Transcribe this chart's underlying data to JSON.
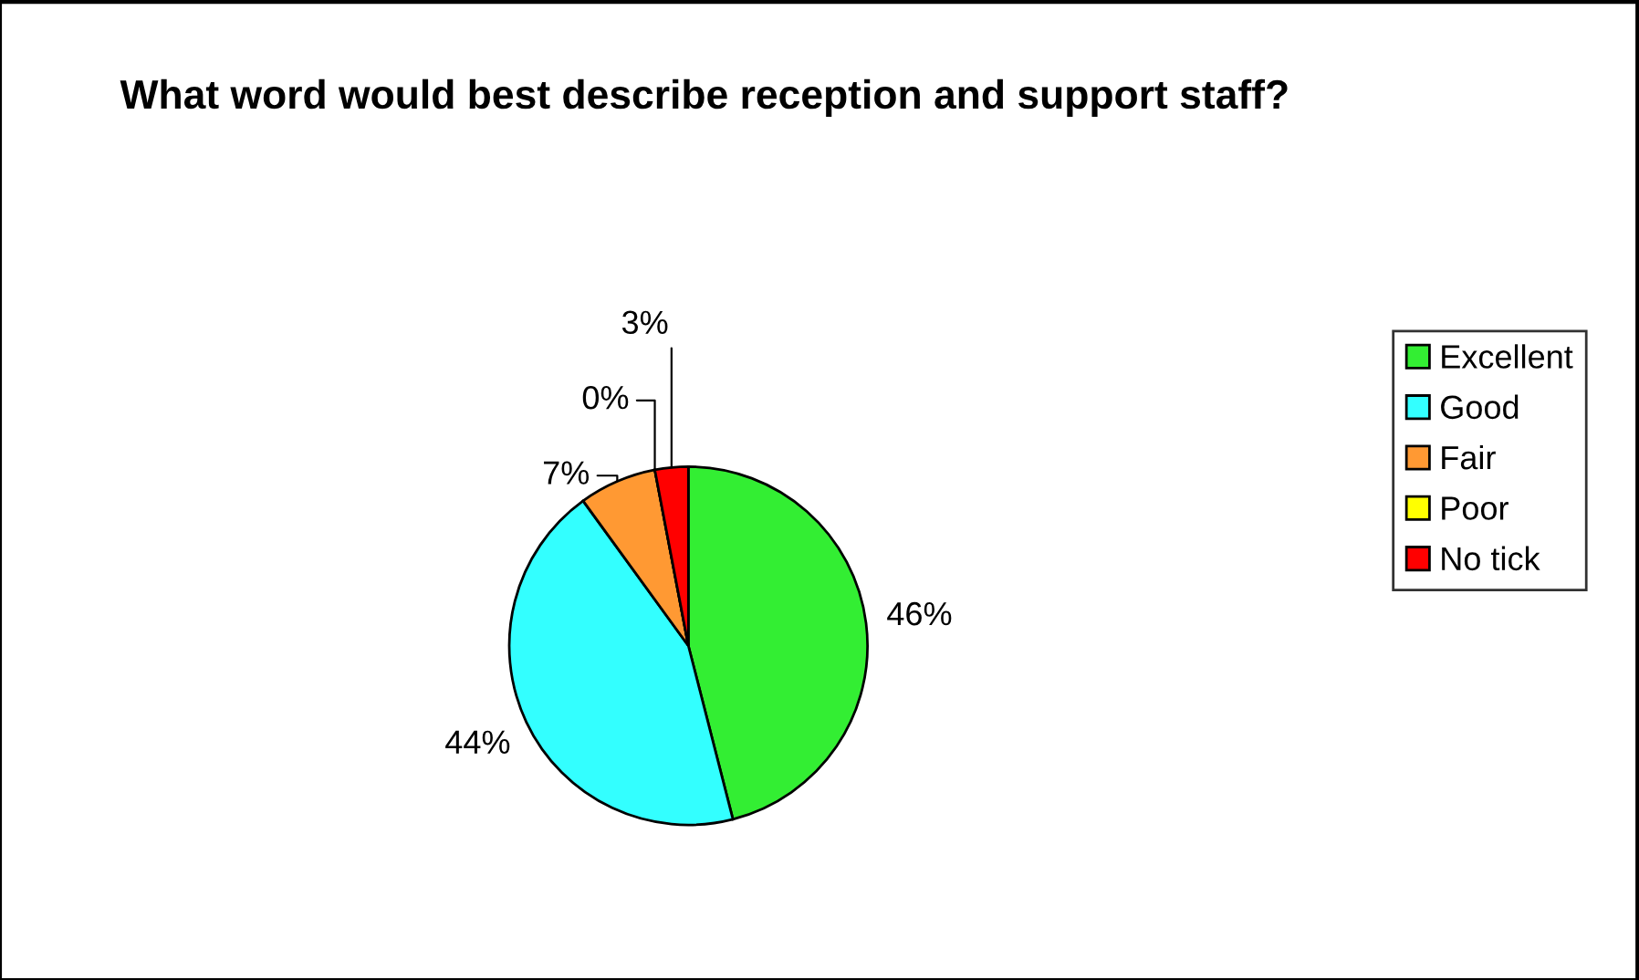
{
  "chart_data": {
    "type": "pie",
    "title": "What word would best describe reception and support staff?",
    "categories": [
      "Excellent",
      "Good",
      "Fair",
      "Poor",
      "No tick"
    ],
    "values": [
      46,
      44,
      7,
      0,
      3
    ],
    "value_labels": [
      "46%",
      "44%",
      "7%",
      "0%",
      "3%"
    ],
    "colors": [
      "#33ee33",
      "#33ffff",
      "#ff9933",
      "#ffff00",
      "#ff0000"
    ],
    "legend": "right"
  }
}
